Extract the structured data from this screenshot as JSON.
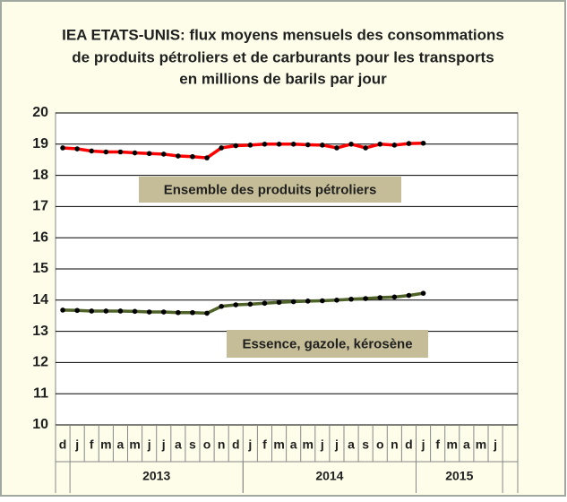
{
  "chart_data": {
    "type": "line",
    "title": [
      "IEA ETATS-UNIS: flux moyens mensuels des consommations",
      "de produits pétroliers et de carburants  pour les transports",
      "en millions  de barils par jour"
    ],
    "categories": [
      "d",
      "j",
      "f",
      "m",
      "a",
      "m",
      "j",
      "j",
      "a",
      "s",
      "o",
      "n",
      "d",
      "j",
      "f",
      "m",
      "a",
      "m",
      "j",
      "j",
      "a",
      "s",
      "o",
      "n",
      "d",
      "j",
      "f",
      "m",
      "a",
      "m",
      "j"
    ],
    "year_groups": [
      {
        "label": "2013",
        "start": 1,
        "count": 12
      },
      {
        "label": "2014",
        "start": 13,
        "count": 12
      },
      {
        "label": "2015",
        "start": 25,
        "count": 6
      }
    ],
    "series": [
      {
        "name": "Ensemble des produits pétroliers",
        "color": "#ff0000",
        "values": [
          18.88,
          18.85,
          18.78,
          18.75,
          18.75,
          18.72,
          18.7,
          18.68,
          18.62,
          18.6,
          18.56,
          18.88,
          18.95,
          18.97,
          19.0,
          19.0,
          19.0,
          18.98,
          18.97,
          18.88,
          19.0,
          18.88,
          19.0,
          18.97,
          19.02,
          19.03,
          null,
          null,
          null,
          null,
          null
        ]
      },
      {
        "name": "Essence, gazole, kérosène",
        "color": "#4f6228",
        "values": [
          13.68,
          13.67,
          13.65,
          13.65,
          13.65,
          13.64,
          13.62,
          13.62,
          13.6,
          13.6,
          13.58,
          13.8,
          13.85,
          13.87,
          13.9,
          13.93,
          13.95,
          13.97,
          13.98,
          14.0,
          14.03,
          14.05,
          14.08,
          14.1,
          14.15,
          14.22,
          null,
          null,
          null,
          null,
          null
        ]
      }
    ],
    "ylim": [
      10,
      20
    ],
    "yticks": [
      10,
      11,
      12,
      13,
      14,
      15,
      16,
      17,
      18,
      19,
      20
    ],
    "grid": true
  }
}
